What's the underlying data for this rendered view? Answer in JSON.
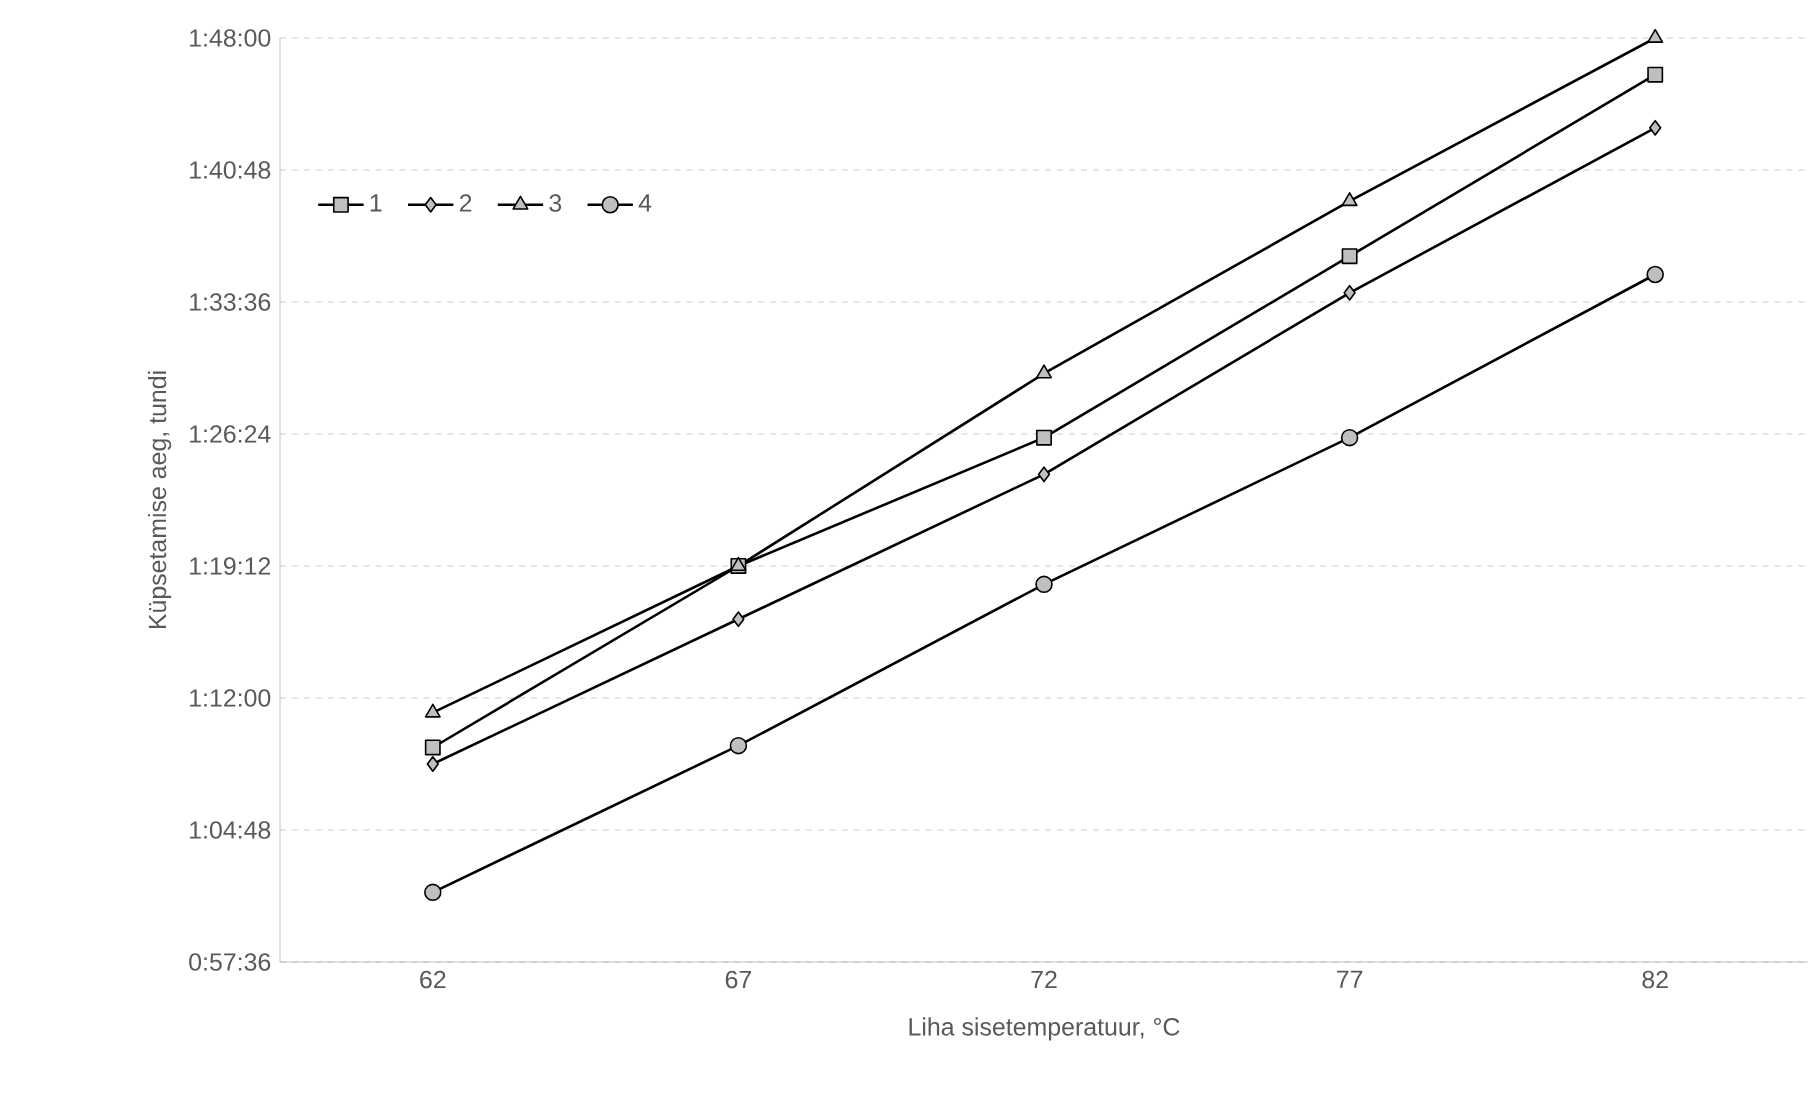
{
  "chart_data": {
    "type": "line",
    "xlabel": "Liha sisetemperatuur, °C",
    "ylabel": "Küpsetamise aeg, tundi",
    "categories": [
      "62",
      "67",
      "72",
      "77",
      "82"
    ],
    "ylim": [
      57.6,
      108
    ],
    "yticks": [
      {
        "value": 57.6,
        "label": "0:57:36"
      },
      {
        "value": 64.8,
        "label": "1:04:48"
      },
      {
        "value": 72,
        "label": "1:12:00"
      },
      {
        "value": 79.2,
        "label": "1:19:12"
      },
      {
        "value": 86.4,
        "label": "1:26:24"
      },
      {
        "value": 93.6,
        "label": "1:33:36"
      },
      {
        "value": 100.8,
        "label": "1:40:48"
      },
      {
        "value": 108,
        "label": "1:48:00"
      }
    ],
    "grid": "y",
    "legend": "top left",
    "line_style": "solid",
    "series": [
      {
        "name": "1",
        "color": "#000000",
        "marker": "square",
        "values": [
          69.3,
          79.2,
          86.2,
          96.1,
          106.0
        ]
      },
      {
        "name": "2",
        "color": "#000000",
        "marker": "diamond",
        "values": [
          68.4,
          76.3,
          84.2,
          94.1,
          103.1
        ]
      },
      {
        "name": "3",
        "color": "#000000",
        "marker": "triangle",
        "values": [
          71.2,
          79.2,
          89.7,
          99.1,
          108.0
        ]
      },
      {
        "name": "4",
        "color": "#000000",
        "marker": "circle",
        "values": [
          61.4,
          69.4,
          78.2,
          86.2,
          95.1
        ]
      }
    ]
  }
}
